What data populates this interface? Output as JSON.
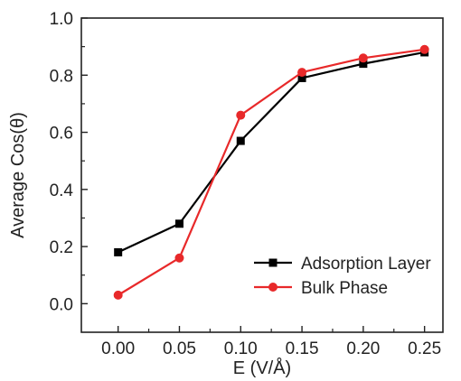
{
  "chart_data": {
    "type": "line",
    "title": "",
    "xlabel": "E (V/Å)",
    "ylabel": "Average Cos(θ)",
    "xlim": [
      -0.03,
      0.265
    ],
    "ylim": [
      -0.1,
      1.0
    ],
    "x_ticks": [
      "0.00",
      "0.05",
      "0.10",
      "0.15",
      "0.20",
      "0.25"
    ],
    "y_ticks": [
      "0.0",
      "0.2",
      "0.4",
      "0.6",
      "0.8",
      "1.0"
    ],
    "grid": false,
    "legend_position": "bottom-right",
    "x": [
      0.0,
      0.05,
      0.1,
      0.15,
      0.2,
      0.25
    ],
    "series": [
      {
        "name": "Adsorption Layer",
        "color": "#000000",
        "marker": "square",
        "values": [
          0.18,
          0.28,
          0.57,
          0.79,
          0.84,
          0.88
        ]
      },
      {
        "name": "Bulk Phase",
        "color": "#e8292a",
        "marker": "circle",
        "values": [
          0.03,
          0.16,
          0.66,
          0.81,
          0.86,
          0.89
        ]
      }
    ]
  }
}
